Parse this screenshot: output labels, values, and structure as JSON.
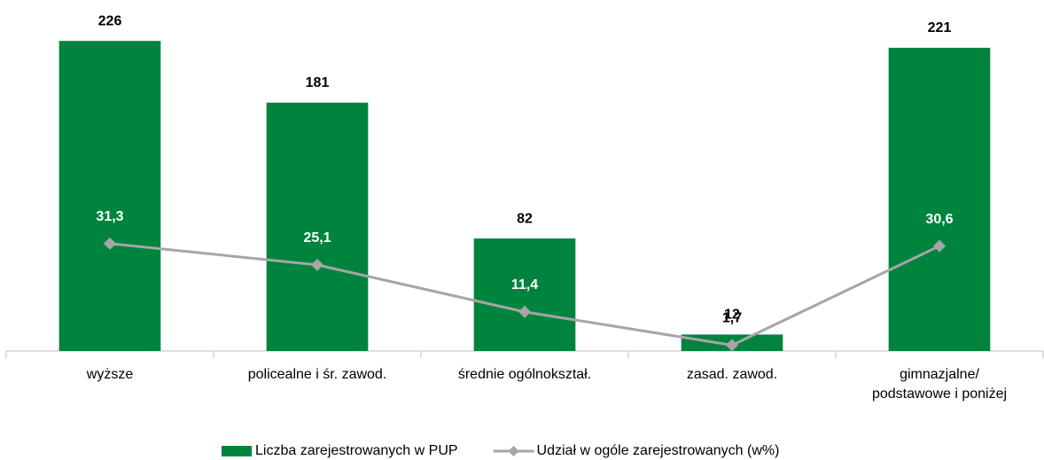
{
  "chart_data": {
    "type": "combo",
    "categories": [
      "wyższe",
      "policealne i śr. zawod.",
      "średnie ogólnokształ.",
      "zasad. zawod.",
      "gimnazjalne/\npodstawowe i poniżej"
    ],
    "series": [
      {
        "name": "Liczba zarejestrowanych w PUP",
        "type": "bar",
        "color": "#00843d",
        "values": [
          226,
          181,
          82,
          12,
          221
        ]
      },
      {
        "name": "Udział w ogóle zarejestrowanych (w%)",
        "type": "line",
        "axis": "y2",
        "color": "#a6a6a6",
        "values": [
          31.3,
          25.1,
          11.4,
          1.7,
          30.6
        ],
        "value_labels": [
          "31,3",
          "25,1",
          "11,4",
          "1,7",
          "30,6"
        ]
      }
    ],
    "ylim": [
      0,
      250
    ],
    "y2lim": [
      0,
      100
    ],
    "legend": "bottom"
  }
}
